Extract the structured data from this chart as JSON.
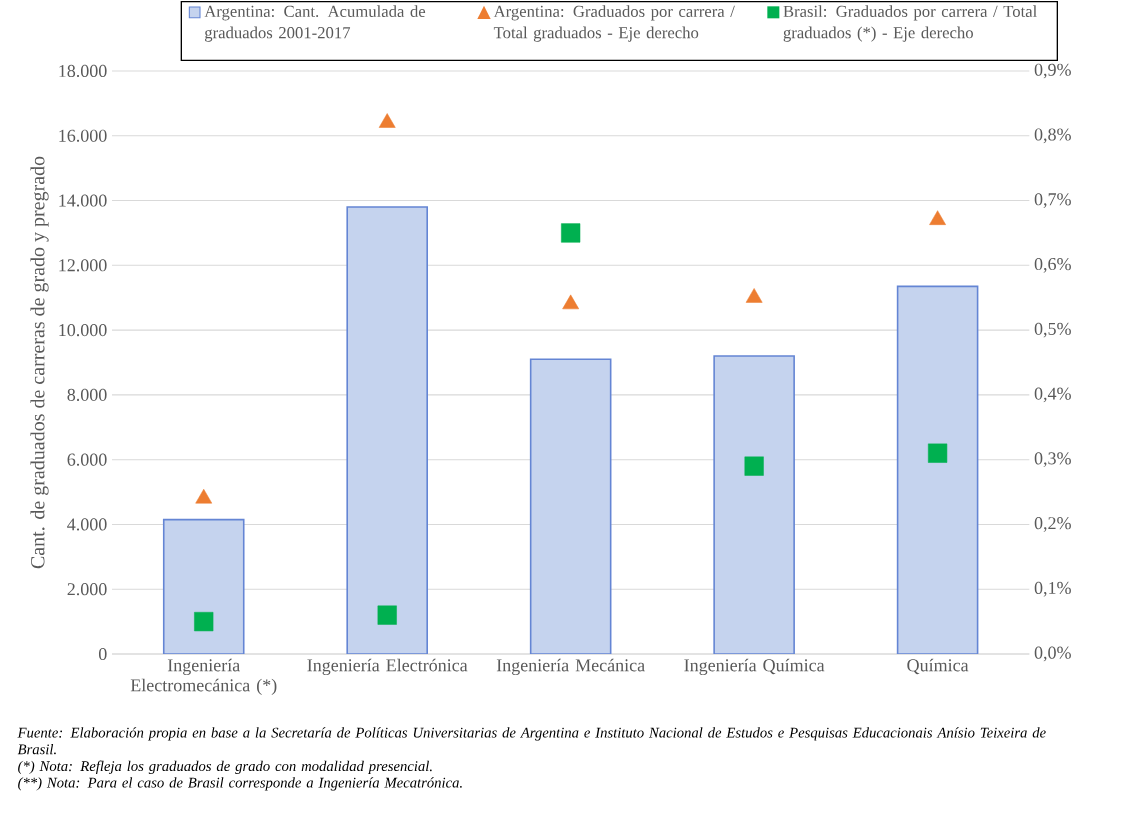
{
  "chart_data": {
    "type": "bar",
    "ylabel": "Cant. de graduados de carreras de grado y pregrado",
    "categories": [
      "Ingeniería Electromecánica (*)",
      "Ingeniería Electrónica",
      "Ingeniería Mecánica",
      "Ingeniería Química",
      "Química"
    ],
    "series": [
      {
        "name": "Argentina: Cant. Acumulada de graduados 2001-2017",
        "color": "#c5d3ee",
        "values": [
          4150,
          13800,
          9100,
          9200,
          11350
        ]
      },
      {
        "name": "Argentina: Graduados por carrera / Total graduados - Eje derecho",
        "type": "scatter",
        "axis": "y2",
        "marker": "triangle",
        "color": "#ed7d31",
        "values": [
          0.24,
          0.82,
          0.54,
          0.55,
          0.67
        ]
      },
      {
        "name": "Brasil: Graduados por carrera / Total graduados (*) - Eje derecho",
        "type": "scatter",
        "axis": "y2",
        "marker": "square",
        "color": "#00b050",
        "values": [
          0.05,
          0.06,
          0.65,
          0.29,
          0.31
        ]
      }
    ],
    "ylim": [
      0,
      18000
    ],
    "yticks": [
      {
        "value": 0,
        "label": "0"
      },
      {
        "value": 2000,
        "label": "2.000"
      },
      {
        "value": 4000,
        "label": "4.000"
      },
      {
        "value": 6000,
        "label": "6.000"
      },
      {
        "value": 8000,
        "label": "8.000"
      },
      {
        "value": 10000,
        "label": "10.000"
      },
      {
        "value": 12000,
        "label": "12.000"
      },
      {
        "value": 14000,
        "label": "14.000"
      },
      {
        "value": 16000,
        "label": "16.000"
      },
      {
        "value": 18000,
        "label": "18.000"
      }
    ],
    "y2lim": [
      0,
      0.9
    ],
    "y2ticks": [
      {
        "value": 0,
        "label": "0,0%"
      },
      {
        "value": 0.1,
        "label": "0,1%"
      },
      {
        "value": 0.2,
        "label": "0,2%"
      },
      {
        "value": 0.3,
        "label": "0,3%"
      },
      {
        "value": 0.4,
        "label": "0,4%"
      },
      {
        "value": 0.5,
        "label": "0,5%"
      },
      {
        "value": 0.6,
        "label": "0,6%"
      },
      {
        "value": 0.7,
        "label": "0,7%"
      },
      {
        "value": 0.8,
        "label": "0,8%"
      },
      {
        "value": 0.9,
        "label": "0,9%"
      }
    ],
    "grid": "y",
    "legend": "top",
    "annotations": [
      "Fuente: Elaboración propia en base a la Secretaría de Políticas Universitarias de Argentina e Instituto Nacional de Estudos e Pesquisas Educacionais Anísio Teixeira de Brasil.",
      "(*) Nota: Refleja los graduados de grado con modalidad presencial.",
      "(**) Nota: Para el caso de Brasil corresponde a Ingeniería Mecatrónica."
    ]
  }
}
